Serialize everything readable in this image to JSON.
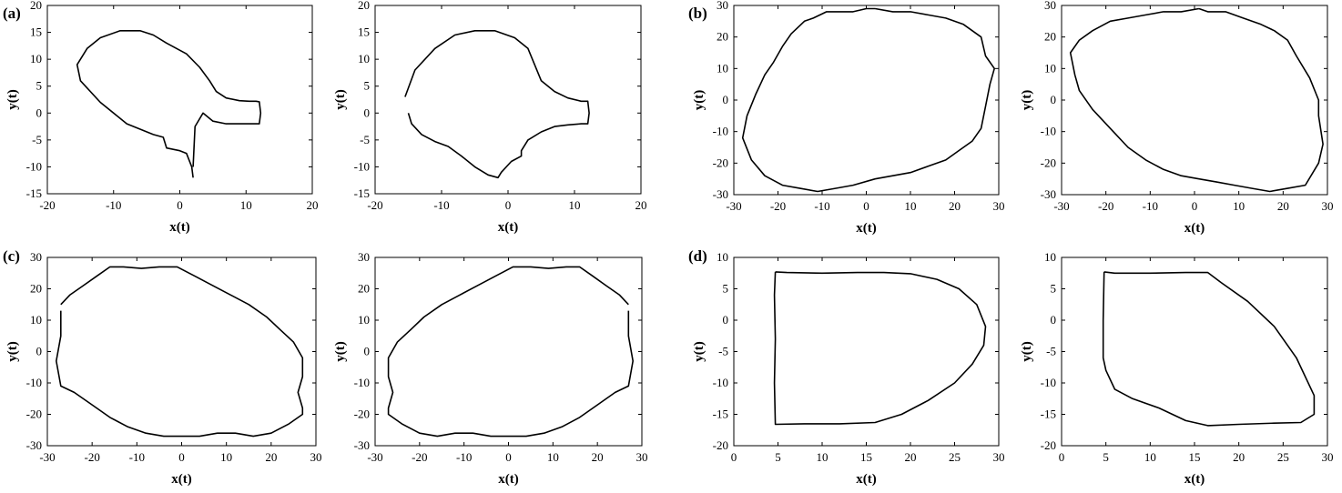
{
  "figure": {
    "panel_labels": [
      "(a)",
      "(b)",
      "(c)",
      "(d)"
    ]
  },
  "chart_data": [
    {
      "type": "line",
      "panel": "(a)",
      "xlabel": "x(t)",
      "ylabel": "y(t)",
      "xlim": [
        -20,
        20
      ],
      "ylim": [
        -15,
        20
      ],
      "xticks": [
        -20,
        -10,
        0,
        10,
        20
      ],
      "yticks": [
        -15,
        -10,
        -5,
        0,
        5,
        10,
        15,
        20
      ],
      "series": [
        {
          "x": [
            2,
            1.8,
            1,
            0,
            -2,
            -2.5,
            -4,
            -8,
            -12,
            -15,
            -15.5,
            -14,
            -12,
            -9,
            -6,
            -4,
            -2,
            1,
            3,
            4.5,
            5.5,
            7,
            9,
            10.5,
            11.5,
            12,
            12.2,
            12,
            11,
            9,
            7,
            5,
            3.5,
            2.3,
            2
          ],
          "y": [
            -12,
            -10,
            -7.5,
            -7,
            -6.5,
            -4.5,
            -4,
            -2,
            2,
            6,
            9,
            12,
            14,
            15.3,
            15.3,
            14.5,
            13,
            11,
            8.5,
            6,
            4,
            2.8,
            2.3,
            2.2,
            2.2,
            2.1,
            0,
            -2,
            -2,
            -2,
            -2,
            -1.5,
            0,
            -2.5,
            -10
          ]
        }
      ]
    },
    {
      "type": "line",
      "panel": "(a)",
      "xlabel": "x(t)",
      "ylabel": "y(t)",
      "xlim": [
        -20,
        20
      ],
      "ylim": [
        -15,
        20
      ],
      "xticks": [
        -20,
        -10,
        0,
        10,
        20
      ],
      "yticks": [
        -15,
        -10,
        -5,
        0,
        5,
        10,
        15,
        20
      ],
      "series": [
        {
          "x": [
            -15,
            -14.5,
            -13,
            -11,
            -9,
            -7,
            -5,
            -3,
            -1.5,
            -1,
            0.5,
            2,
            2,
            3,
            5,
            7,
            9,
            11,
            12,
            12.2,
            12,
            11,
            9,
            7,
            5,
            4,
            3,
            1,
            -2,
            -5,
            -8,
            -11,
            -14,
            -15.5
          ],
          "y": [
            0,
            -2,
            -4,
            -5.3,
            -6.2,
            -8,
            -10,
            -11.5,
            -12,
            -11,
            -9,
            -8,
            -7,
            -5,
            -3.5,
            -2.5,
            -2.2,
            -2,
            -2,
            0,
            2.2,
            2.2,
            2.8,
            4,
            6,
            9,
            12,
            14,
            15.3,
            15.3,
            14.5,
            12,
            8,
            3
          ]
        }
      ]
    },
    {
      "type": "line",
      "panel": "(b)",
      "xlabel": "x(t)",
      "ylabel": "y(t)",
      "xlim": [
        -30,
        30
      ],
      "ylim": [
        -30,
        30
      ],
      "xticks": [
        -30,
        -20,
        -10,
        0,
        10,
        20,
        30
      ],
      "yticks": [
        -30,
        -20,
        -10,
        0,
        10,
        20,
        30
      ],
      "series": [
        {
          "x": [
            2,
            6,
            10,
            14,
            18,
            22,
            26,
            27,
            29,
            28,
            27,
            26,
            24,
            21,
            18,
            14,
            10,
            6,
            2,
            -3,
            -7,
            -11,
            -15,
            -19,
            -23,
            -26,
            -28,
            -27,
            -25,
            -23,
            -21,
            -19,
            -17,
            -14,
            -12,
            -9,
            -6,
            -3,
            0,
            2
          ],
          "y": [
            29,
            28,
            28,
            27,
            26,
            24,
            20,
            14,
            10,
            5,
            -2,
            -9,
            -13,
            -16,
            -19,
            -21,
            -23,
            -24,
            -25,
            -27,
            -28,
            -29,
            -28,
            -27,
            -24,
            -19,
            -12,
            -5,
            2,
            8,
            12,
            17,
            21,
            25,
            26,
            28,
            28,
            28,
            29,
            29
          ]
        }
      ]
    },
    {
      "type": "line",
      "panel": "(b)",
      "xlabel": "x(t)",
      "ylabel": "y(t)",
      "xlim": [
        -30,
        30
      ],
      "ylim": [
        -30,
        30
      ],
      "xticks": [
        -30,
        -20,
        -10,
        0,
        10,
        20,
        30
      ],
      "yticks": [
        -30,
        -20,
        -10,
        0,
        10,
        20,
        30
      ],
      "series": [
        {
          "x": [
            1,
            -3,
            -7,
            -11,
            -15,
            -19,
            -23,
            -26,
            -28,
            -27,
            -26,
            -23,
            -19,
            -15,
            -11,
            -7,
            -3,
            1,
            5,
            9,
            13,
            17,
            21,
            25,
            28,
            29,
            28,
            28,
            26,
            23,
            21,
            18,
            15,
            11,
            7,
            3,
            1
          ],
          "y": [
            29,
            28,
            28,
            27,
            26,
            25,
            22,
            19,
            15,
            8,
            3,
            -3,
            -9,
            -15,
            -19,
            -22,
            -24,
            -25,
            -26,
            -27,
            -28,
            -29,
            -28,
            -27,
            -20,
            -14,
            -5,
            0,
            7,
            14,
            19,
            22,
            24,
            26,
            28,
            28,
            29
          ]
        }
      ]
    },
    {
      "type": "line",
      "panel": "(c)",
      "xlabel": "x(t)",
      "ylabel": "y(t)",
      "xlim": [
        -30,
        30
      ],
      "ylim": [
        -30,
        30
      ],
      "xticks": [
        -30,
        -20,
        -10,
        0,
        10,
        20,
        30
      ],
      "yticks": [
        -30,
        -20,
        -10,
        0,
        10,
        20,
        30
      ],
      "series": [
        {
          "x": [
            -27,
            -25,
            -22,
            -19,
            -16,
            -13,
            -9,
            -5,
            -1,
            3,
            7,
            11,
            15,
            19,
            22,
            25,
            27,
            27,
            26,
            27,
            27,
            24,
            20,
            16,
            12,
            8,
            4,
            0,
            -4,
            -8,
            -12,
            -16,
            -20,
            -24,
            -27,
            -28,
            -27,
            -27
          ],
          "y": [
            15,
            18,
            21,
            24,
            27,
            27,
            26.5,
            27,
            27,
            24,
            21,
            18,
            15,
            11,
            7,
            3,
            -2,
            -8,
            -13,
            -18,
            -20,
            -23,
            -26,
            -27,
            -26,
            -26,
            -27,
            -27,
            -27,
            -26,
            -24,
            -21,
            -17,
            -13,
            -11,
            -3,
            5,
            13
          ]
        }
      ]
    },
    {
      "type": "line",
      "panel": "(c)",
      "xlabel": "x(t)",
      "ylabel": "y(t)",
      "xlim": [
        -30,
        30
      ],
      "ylim": [
        -30,
        30
      ],
      "xticks": [
        -30,
        -20,
        -10,
        0,
        10,
        20,
        30
      ],
      "yticks": [
        -30,
        -20,
        -10,
        0,
        10,
        20,
        30
      ],
      "series": [
        {
          "x": [
            27,
            25,
            22,
            19,
            16,
            13,
            9,
            5,
            1,
            -3,
            -7,
            -11,
            -15,
            -19,
            -22,
            -25,
            -27,
            -27,
            -26,
            -27,
            -27,
            -24,
            -20,
            -16,
            -12,
            -8,
            -4,
            0,
            4,
            8,
            12,
            16,
            20,
            24,
            27,
            28,
            27,
            27
          ],
          "y": [
            15,
            18,
            21,
            24,
            27,
            27,
            26.5,
            27,
            27,
            24,
            21,
            18,
            15,
            11,
            7,
            3,
            -2,
            -8,
            -13,
            -18,
            -20,
            -23,
            -26,
            -27,
            -26,
            -26,
            -27,
            -27,
            -27,
            -26,
            -24,
            -21,
            -17,
            -13,
            -11,
            -3,
            5,
            13
          ]
        }
      ]
    },
    {
      "type": "line",
      "panel": "(d)",
      "xlabel": "x(t)",
      "ylabel": "y(t)",
      "xlim": [
        0,
        30
      ],
      "ylim": [
        -20,
        10
      ],
      "xticks": [
        0,
        5,
        10,
        15,
        20,
        25,
        30
      ],
      "yticks": [
        -20,
        -15,
        -10,
        -5,
        0,
        5,
        10
      ],
      "series": [
        {
          "x": [
            4.7,
            6,
            10,
            14,
            17,
            20,
            23,
            25.5,
            27.5,
            28.5,
            28.3,
            27,
            25,
            22,
            19,
            16,
            12,
            8,
            4.7,
            4.6,
            4.7,
            4.6,
            4.7
          ],
          "y": [
            7.7,
            7.6,
            7.5,
            7.6,
            7.6,
            7.4,
            6.5,
            5,
            2.5,
            -1,
            -4,
            -7,
            -10,
            -12.8,
            -15,
            -16.3,
            -16.5,
            -16.5,
            -16.6,
            -10,
            -3,
            4,
            7.7
          ]
        }
      ]
    },
    {
      "type": "line",
      "panel": "(d)",
      "xlabel": "x(t)",
      "ylabel": "y(t)",
      "xlim": [
        0,
        30
      ],
      "ylim": [
        -20,
        10
      ],
      "xticks": [
        0,
        5,
        10,
        15,
        20,
        25,
        30
      ],
      "yticks": [
        -20,
        -15,
        -10,
        -5,
        0,
        5,
        10
      ],
      "series": [
        {
          "x": [
            4.8,
            6,
            10,
            14,
            16.5,
            18,
            21,
            24,
            26.5,
            28.5,
            28.5,
            27,
            24,
            20,
            16.5,
            14,
            11,
            8,
            6,
            5,
            4.7,
            4.7,
            4.8
          ],
          "y": [
            7.7,
            7.5,
            7.5,
            7.6,
            7.6,
            6,
            3,
            -1,
            -6,
            -12,
            -15,
            -16.3,
            -16.4,
            -16.6,
            -16.8,
            -16,
            -14,
            -12.5,
            -11,
            -8,
            -6,
            0,
            7.7
          ]
        }
      ]
    }
  ]
}
